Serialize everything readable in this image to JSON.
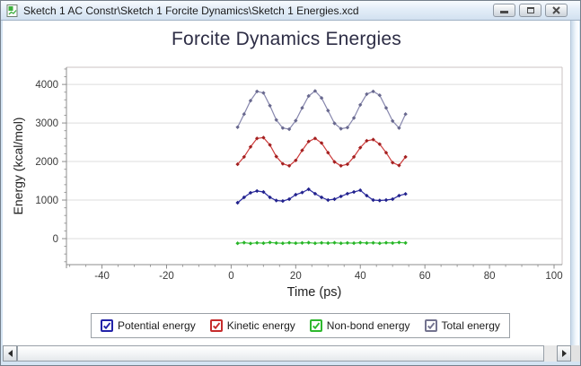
{
  "window": {
    "title": "Sketch 1 AC Constr\\Sketch 1 Forcite Dynamics\\Sketch 1 Energies.xcd",
    "controls": {
      "minimize": "minimize",
      "restore": "restore",
      "close": "close"
    }
  },
  "chart_data": {
    "type": "line",
    "title": "Forcite Dynamics Energies",
    "xlabel": "Time (ps)",
    "ylabel": "Energy (kcal/mol)",
    "xlim": [
      -51,
      102.5
    ],
    "ylim": [
      -675,
      4445
    ],
    "xticks": [
      -40,
      -20,
      0,
      20,
      40,
      60,
      80,
      100
    ],
    "yticks": [
      0,
      1000,
      2000,
      3000,
      4000
    ],
    "x_minor_step": 5,
    "y_minor_step": 200,
    "grid": "horizontal",
    "legend_position": "bottom",
    "x": [
      2,
      4,
      6,
      8,
      10,
      12,
      14,
      16,
      18,
      20,
      22,
      24,
      26,
      28,
      30,
      32,
      34,
      36,
      38,
      40,
      42,
      44,
      46,
      48,
      50,
      52,
      54
    ],
    "series": [
      {
        "name": "Potential energy",
        "color": "#2a2aa0",
        "marker_color": "#22228c",
        "y": [
          930,
          1070,
          1190,
          1235,
          1210,
          1070,
          990,
          975,
          1025,
          1140,
          1195,
          1280,
          1165,
          1070,
          1000,
          1025,
          1095,
          1165,
          1210,
          1255,
          1115,
          1000,
          990,
          1000,
          1025,
          1115,
          1160
        ]
      },
      {
        "name": "Kinetic energy",
        "color": "#cc3a3a",
        "marker_color": "#a32020",
        "y": [
          1930,
          2120,
          2380,
          2600,
          2620,
          2430,
          2130,
          1940,
          1890,
          2030,
          2290,
          2520,
          2600,
          2480,
          2230,
          1990,
          1890,
          1930,
          2120,
          2360,
          2540,
          2570,
          2450,
          2230,
          1970,
          1900,
          2120
        ]
      },
      {
        "name": "Non-bond energy",
        "color": "#3cc83c",
        "marker_color": "#28b428",
        "y": [
          -120,
          -105,
          -125,
          -110,
          -118,
          -100,
          -115,
          -122,
          -108,
          -118,
          -112,
          -105,
          -120,
          -110,
          -116,
          -108,
          -120,
          -112,
          -118,
          -105,
          -115,
          -110,
          -120,
          -108,
          -115,
          -100,
          -112
        ]
      },
      {
        "name": "Total energy",
        "color": "#8787ad",
        "marker_color": "#68688e",
        "y": [
          2890,
          3230,
          3580,
          3820,
          3780,
          3450,
          3080,
          2870,
          2840,
          3060,
          3390,
          3700,
          3830,
          3650,
          3320,
          2990,
          2850,
          2880,
          3130,
          3470,
          3750,
          3820,
          3720,
          3390,
          3050,
          2870,
          3230
        ]
      }
    ]
  },
  "legend": {
    "items": [
      {
        "label": "Potential energy",
        "color": "#2323a8",
        "checked": true
      },
      {
        "label": "Kinetic energy",
        "color": "#c62c2c",
        "checked": true
      },
      {
        "label": "Non-bond energy",
        "color": "#2eb82e",
        "checked": true
      },
      {
        "label": "Total energy",
        "color": "#73738f",
        "checked": true
      }
    ]
  },
  "colors": {
    "titlebar": "#e3edf8",
    "frame": "#d4e4f3",
    "axis": "#8c8c8c",
    "grid": "#dcdcdc"
  }
}
